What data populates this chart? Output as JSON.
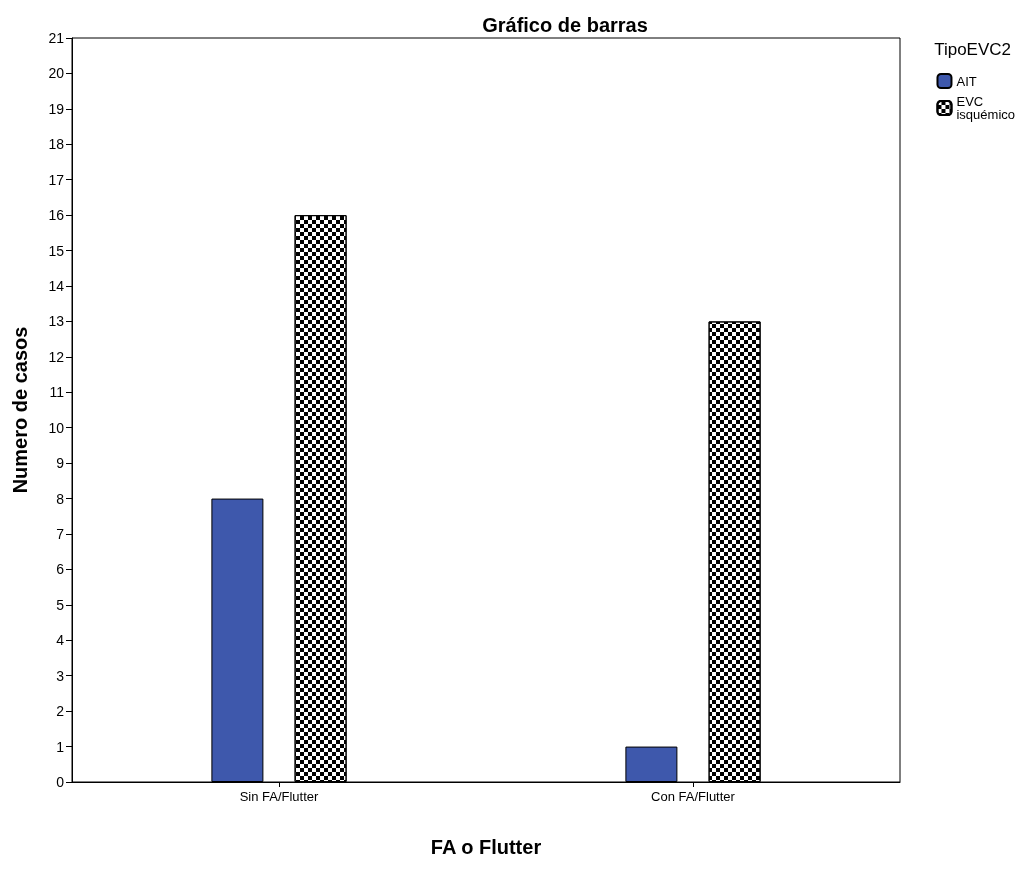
{
  "chart_data": {
    "type": "bar",
    "title": "Gráfico de barras",
    "xlabel": "FA o Flutter",
    "ylabel": "Numero de casos",
    "legend_title": "TipoEVC2",
    "categories": [
      "Sin FA/Flutter",
      "Con FA/Flutter"
    ],
    "series": [
      {
        "name": "AIT",
        "color": "#3e58ac",
        "values": [
          8,
          1
        ]
      },
      {
        "name": "EVC isquémico",
        "color": "#000000",
        "values": [
          16,
          13
        ]
      }
    ],
    "ylim": [
      0,
      21
    ],
    "yticks": [
      0,
      1,
      2,
      3,
      4,
      5,
      6,
      7,
      8,
      9,
      10,
      11,
      12,
      13,
      14,
      15,
      16,
      17,
      18,
      19,
      20,
      21
    ],
    "grid": false,
    "legend": "top right"
  }
}
